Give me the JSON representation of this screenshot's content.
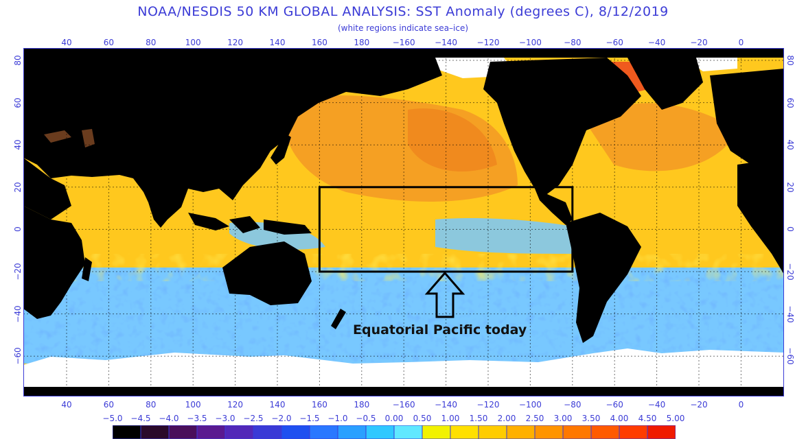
{
  "header": {
    "title": "NOAA/NESDIS 50 KM GLOBAL ANALYSIS: SST Anomaly (degrees C), 8/12/2019",
    "subtitle": "(white regions indicate sea–ice)"
  },
  "axes": {
    "lon_ticks": [
      "40",
      "60",
      "80",
      "100",
      "120",
      "140",
      "160",
      "180",
      "−160",
      "−140",
      "−120",
      "−100",
      "−80",
      "−60",
      "−40",
      "−20",
      "0"
    ],
    "lat_ticks": [
      "80",
      "60",
      "40",
      "20",
      "0",
      "−20",
      "−40",
      "−60"
    ]
  },
  "colorbar": {
    "labels": [
      "−5.0",
      "−4.5",
      "−4.0",
      "−3.5",
      "−3.0",
      "−2.5",
      "−2.0",
      "−1.5",
      "−1.0",
      "−0.5",
      "0.00",
      "0.50",
      "1.00",
      "1.50",
      "2.00",
      "2.50",
      "3.00",
      "3.50",
      "4.00",
      "4.50",
      "5.00"
    ],
    "colors": [
      "#000000",
      "#2a0a2a",
      "#4a0f5a",
      "#5a1a90",
      "#5228b8",
      "#3a3ad6",
      "#1f50f0",
      "#2a78ff",
      "#2aa0ff",
      "#30c8ff",
      "#60e8ff",
      "#f2f200",
      "#ffe000",
      "#ffcc00",
      "#ffb000",
      "#ff9400",
      "#ff7800",
      "#ff5a00",
      "#ff3c00",
      "#f01a00"
    ]
  },
  "map": {
    "region_box": {
      "lon_min": 160,
      "lon_max": -80,
      "lat_min": -20,
      "lat_max": 20
    },
    "annotation": "Equatorial Pacific today",
    "colors": {
      "land": "#000000",
      "ice": "#ffffff",
      "warm": "#ffc81e",
      "hot": "#f58a1e",
      "cool": "#50b4ff",
      "cold": "#2a78ff",
      "box": "#000000"
    }
  }
}
